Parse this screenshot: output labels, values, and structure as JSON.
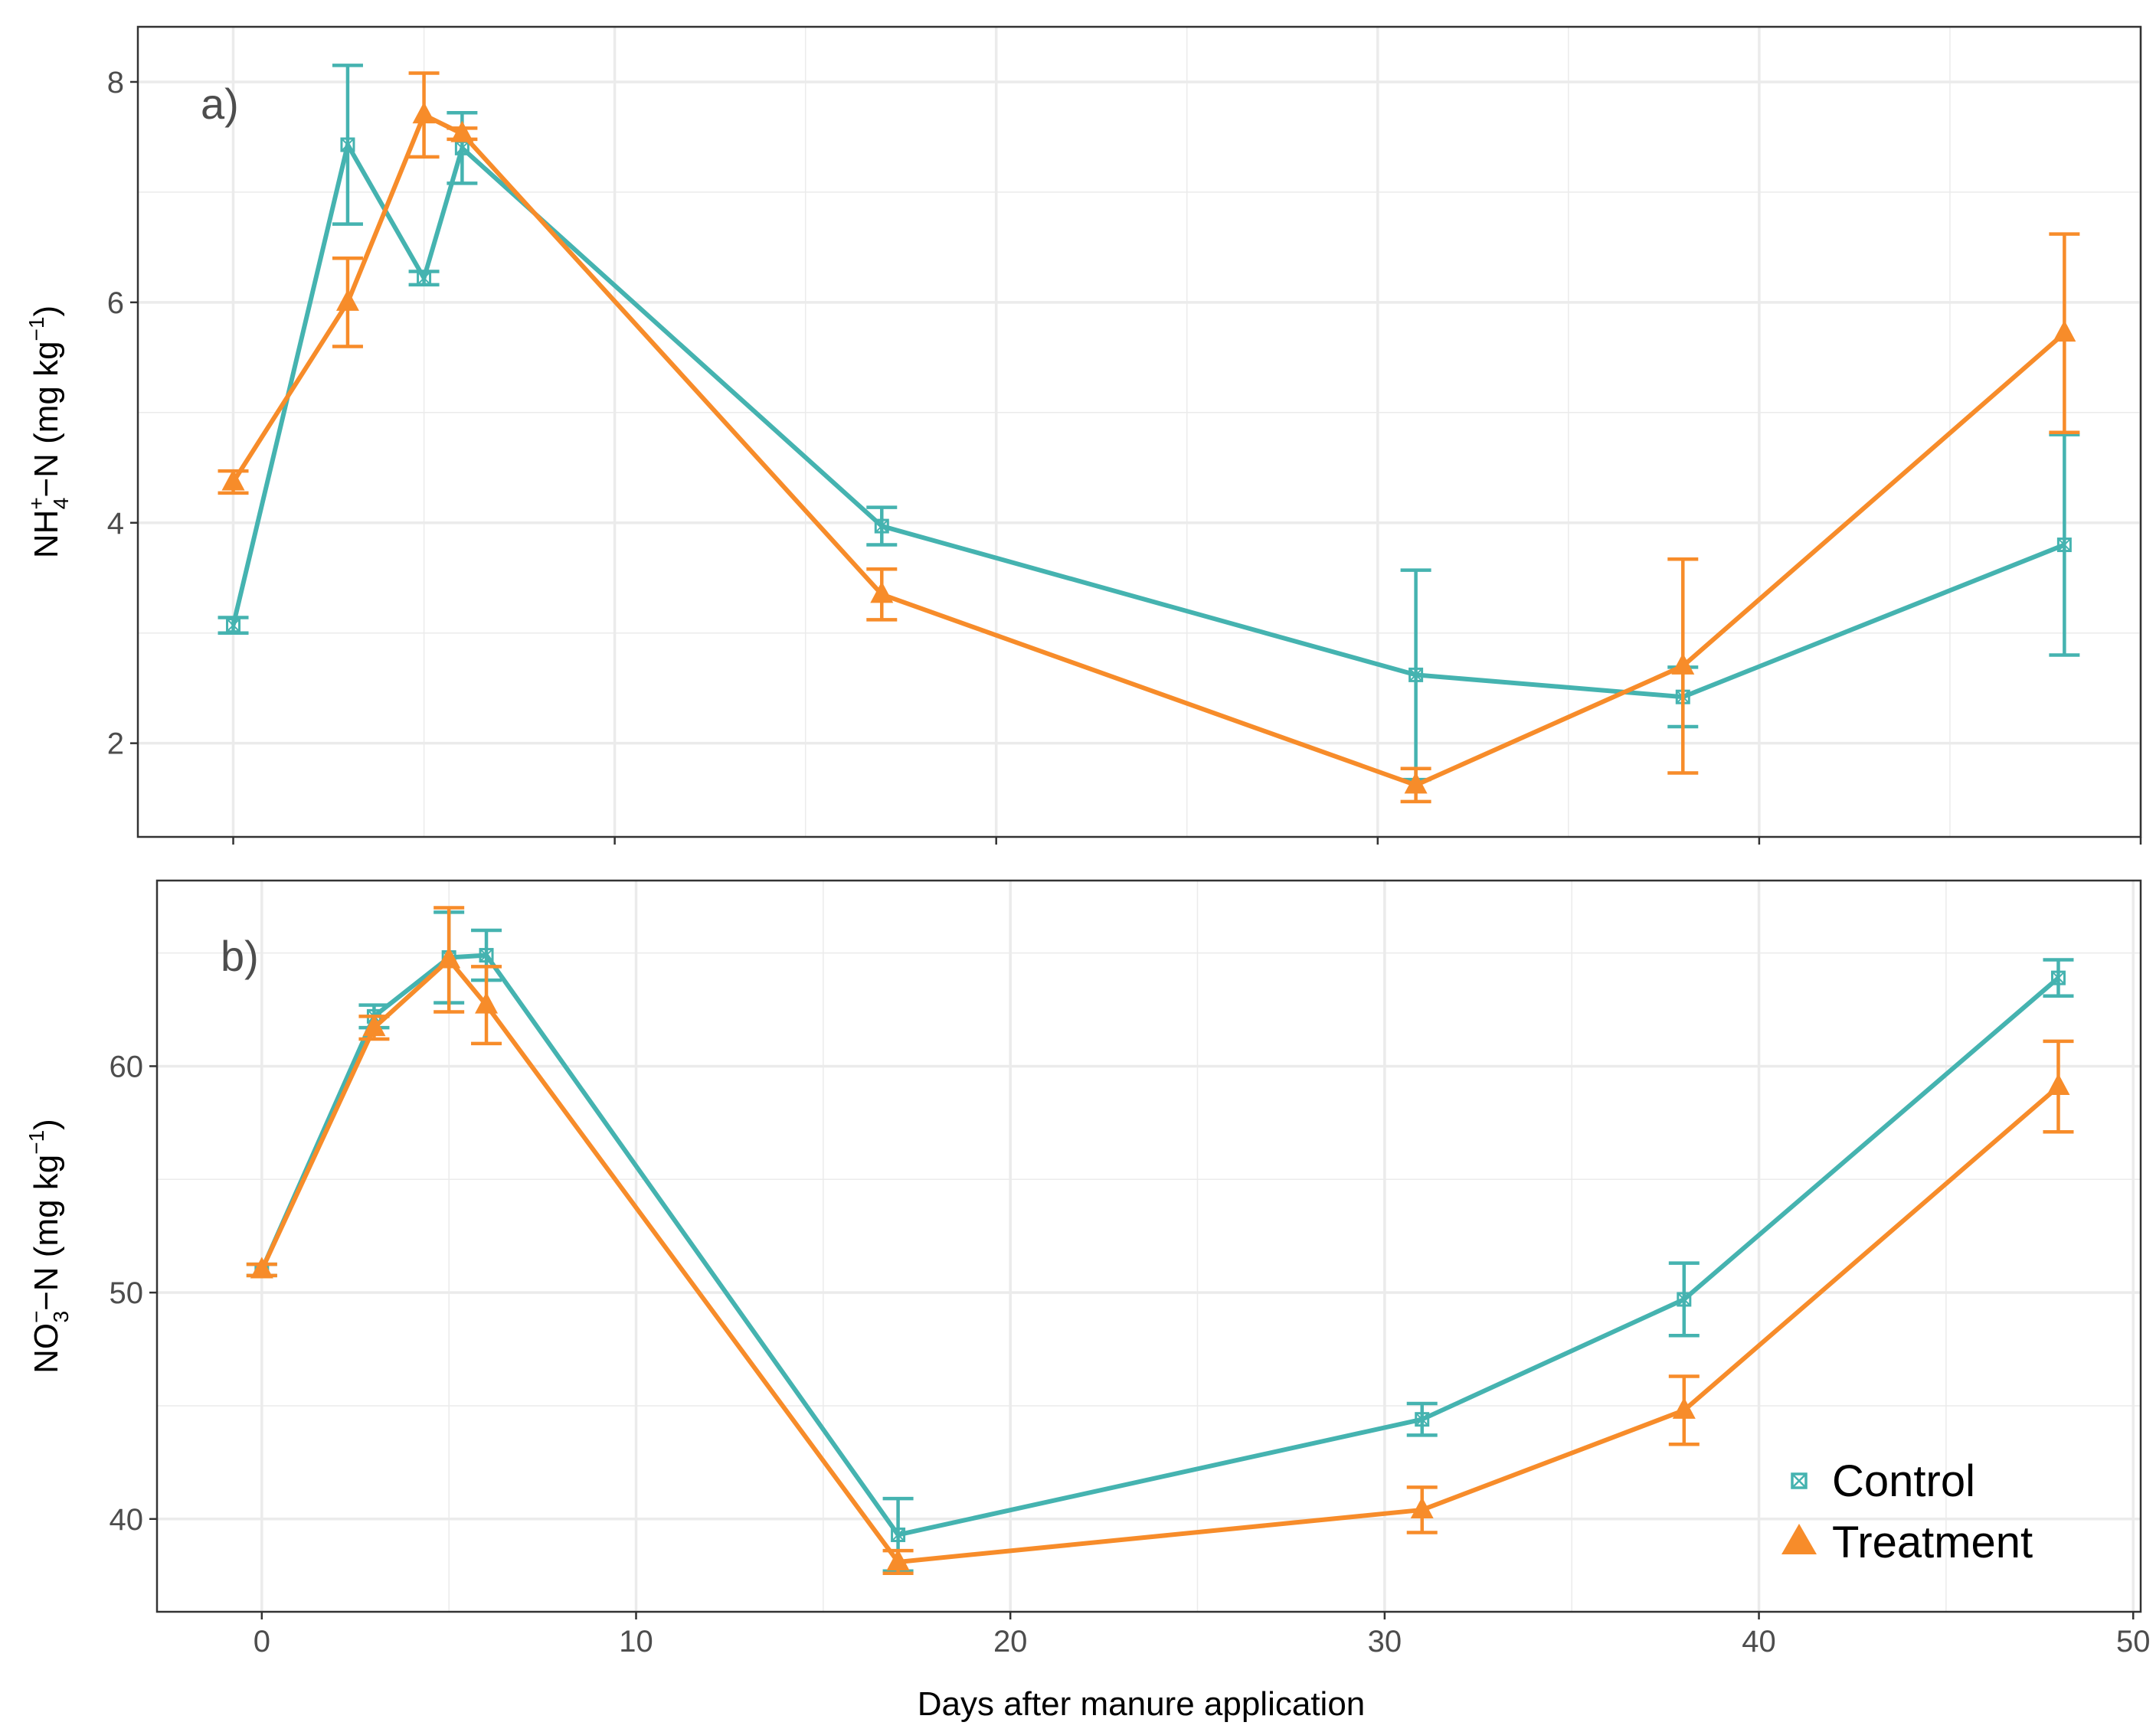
{
  "colors": {
    "control": "#45b3b0",
    "treatment": "#f78c2a",
    "grid": "#ebebeb",
    "frame": "#333333"
  },
  "legend": {
    "control_label": "Control",
    "treatment_label": "Treatment",
    "control_marker": "square-cross",
    "treatment_marker": "triangle"
  },
  "xlabel": "Days after manure application",
  "chart_data": [
    {
      "type": "line",
      "panel": "a)",
      "ylabel": {
        "main": "NH",
        "sub": "4",
        "sup": "+",
        "rest": "−N (mg kg",
        "unit_sup": "−1",
        "close": ")"
      },
      "xlim": [
        -2.5,
        50
      ],
      "ylim": [
        1.15,
        8.5
      ],
      "xticks": [
        0,
        10,
        20,
        30,
        40,
        50
      ],
      "yticks": [
        2,
        4,
        6,
        8
      ],
      "grid": true,
      "series": [
        {
          "name": "Control",
          "x": [
            0,
            3,
            5,
            6,
            17,
            31,
            38,
            48
          ],
          "y": [
            3.07,
            7.43,
            6.22,
            7.4,
            3.97,
            2.62,
            2.42,
            3.8
          ],
          "err": [
            0.07,
            0.72,
            0.06,
            0.32,
            0.17,
            0.95,
            0.27,
            1.0
          ]
        },
        {
          "name": "Treatment",
          "x": [
            0,
            3,
            5,
            6,
            17,
            31,
            38,
            48
          ],
          "y": [
            4.37,
            6.0,
            7.7,
            7.53,
            3.35,
            1.62,
            2.7,
            5.72
          ],
          "err": [
            0.1,
            0.4,
            0.38,
            0.05,
            0.23,
            0.15,
            0.97,
            0.9
          ]
        }
      ]
    },
    {
      "type": "line",
      "panel": "b)",
      "ylabel": {
        "main": "NO",
        "sub": "3",
        "sup": "−",
        "rest": "−N (mg kg",
        "unit_sup": "−1",
        "close": ")"
      },
      "xlim": [
        -2.8,
        50.2
      ],
      "ylim": [
        35.9,
        68.2
      ],
      "xticks": [
        0,
        10,
        20,
        30,
        40,
        50
      ],
      "yticks": [
        40,
        50,
        60
      ],
      "grid": true,
      "legend_position": "bottom-right",
      "series": [
        {
          "name": "Control",
          "x": [
            0,
            3,
            5,
            6,
            17,
            31,
            38,
            48
          ],
          "y": [
            51.0,
            62.2,
            64.8,
            64.9,
            39.3,
            44.4,
            49.7,
            63.9
          ],
          "err": [
            0.25,
            0.5,
            2.0,
            1.1,
            1.6,
            0.7,
            1.6,
            0.8
          ]
        },
        {
          "name": "Treatment",
          "x": [
            0,
            3,
            5,
            6,
            17,
            31,
            38,
            48
          ],
          "y": [
            51.0,
            61.7,
            64.7,
            62.7,
            38.1,
            40.4,
            44.8,
            59.1
          ],
          "err": [
            0.25,
            0.5,
            2.3,
            1.7,
            0.5,
            1.0,
            1.5,
            2.0
          ]
        }
      ]
    }
  ]
}
